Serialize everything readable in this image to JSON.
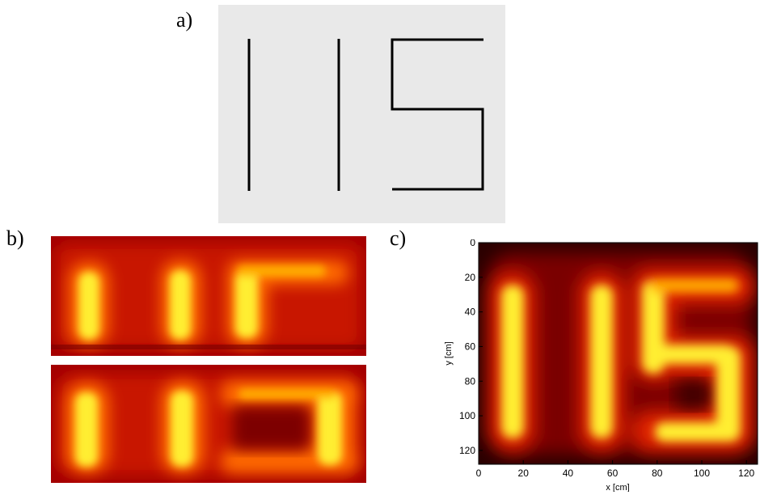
{
  "labels": {
    "a": "a)",
    "b": "b)",
    "c": "c)"
  },
  "colors": {
    "schematic_bg": "#e9e9e9",
    "heat_low": "#2a0000",
    "heat_mid": "#d41a00",
    "heat_high": "#ffff66"
  },
  "axes_c": {
    "xlabel": "x [cm]",
    "ylabel": "y [cm]",
    "xticks": [
      "0",
      "20",
      "40",
      "60",
      "80",
      "100",
      "120"
    ],
    "yticks": [
      "0",
      "20",
      "40",
      "60",
      "80",
      "100",
      "120"
    ],
    "xlim": [
      0,
      125
    ],
    "ylim": [
      0,
      128
    ]
  }
}
